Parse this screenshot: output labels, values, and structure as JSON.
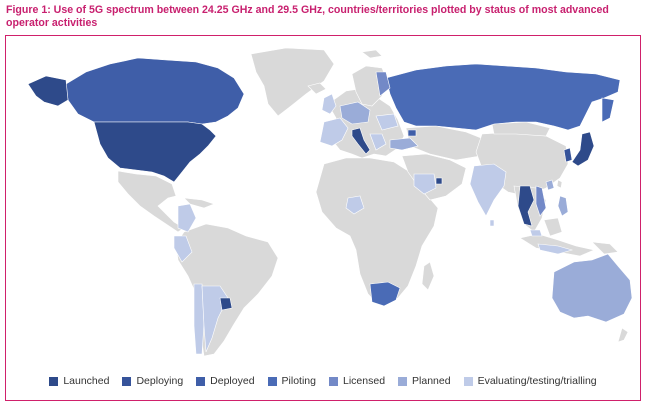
{
  "caption": "Figure 1: Use of 5G spectrum between 24.25 GHz and 29.5 GHz, countries/territories plotted by status of most advanced operator activities",
  "colors": {
    "caption": "#c8206f",
    "frame_border": "#d0206b",
    "no_data": "#d9d9d9",
    "launched": "#2e4a8a",
    "deploying": "#36539a",
    "deployed": "#3f5ea8",
    "piloting": "#4a6bb6",
    "licensed": "#7389c7",
    "planned": "#9aacd8",
    "evaluating": "#bfcbe8"
  },
  "legend": [
    {
      "label": "Launched",
      "color": "#2e4a8a"
    },
    {
      "label": "Deploying",
      "color": "#36539a"
    },
    {
      "label": "Deployed",
      "color": "#3f5ea8"
    },
    {
      "label": "Piloting",
      "color": "#4a6bb6"
    },
    {
      "label": "Licensed",
      "color": "#7389c7"
    },
    {
      "label": "Planned",
      "color": "#9aacd8"
    },
    {
      "label": "Evaluating/testing/trialling",
      "color": "#bfcbe8"
    }
  ]
}
